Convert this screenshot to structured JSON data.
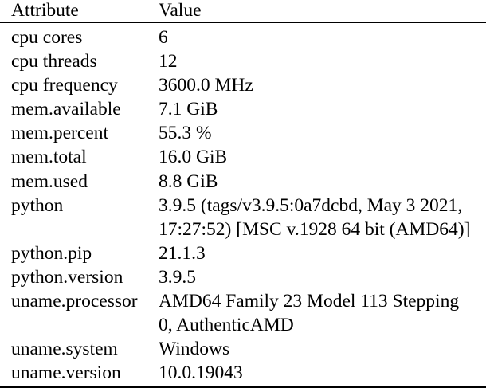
{
  "table": {
    "columns": {
      "attribute": "Attribute",
      "value": "Value"
    },
    "rows": [
      {
        "attribute": "cpu cores",
        "value": "6"
      },
      {
        "attribute": "cpu threads",
        "value": "12"
      },
      {
        "attribute": "cpu frequency",
        "value": "3600.0 MHz"
      },
      {
        "attribute": "mem.available",
        "value": "7.1 GiB"
      },
      {
        "attribute": "mem.percent",
        "value": "55.3 %"
      },
      {
        "attribute": "mem.total",
        "value": "16.0 GiB"
      },
      {
        "attribute": "mem.used",
        "value": "8.8 GiB"
      },
      {
        "attribute": "python",
        "value": "3.9.5 (tags/v3.9.5:0a7dcbd, May 3 2021, 17:27:52) [MSC v.1928 64 bit (AMD64)]"
      },
      {
        "attribute": "python.pip",
        "value": "21.1.3"
      },
      {
        "attribute": "python.version",
        "value": "3.9.5"
      },
      {
        "attribute": "uname.processor",
        "value": "AMD64 Family 23 Model 113 Stepping 0, AuthenticAMD"
      },
      {
        "attribute": "uname.system",
        "value": "Windows"
      },
      {
        "attribute": "uname.version",
        "value": "10.0.19043"
      }
    ]
  }
}
